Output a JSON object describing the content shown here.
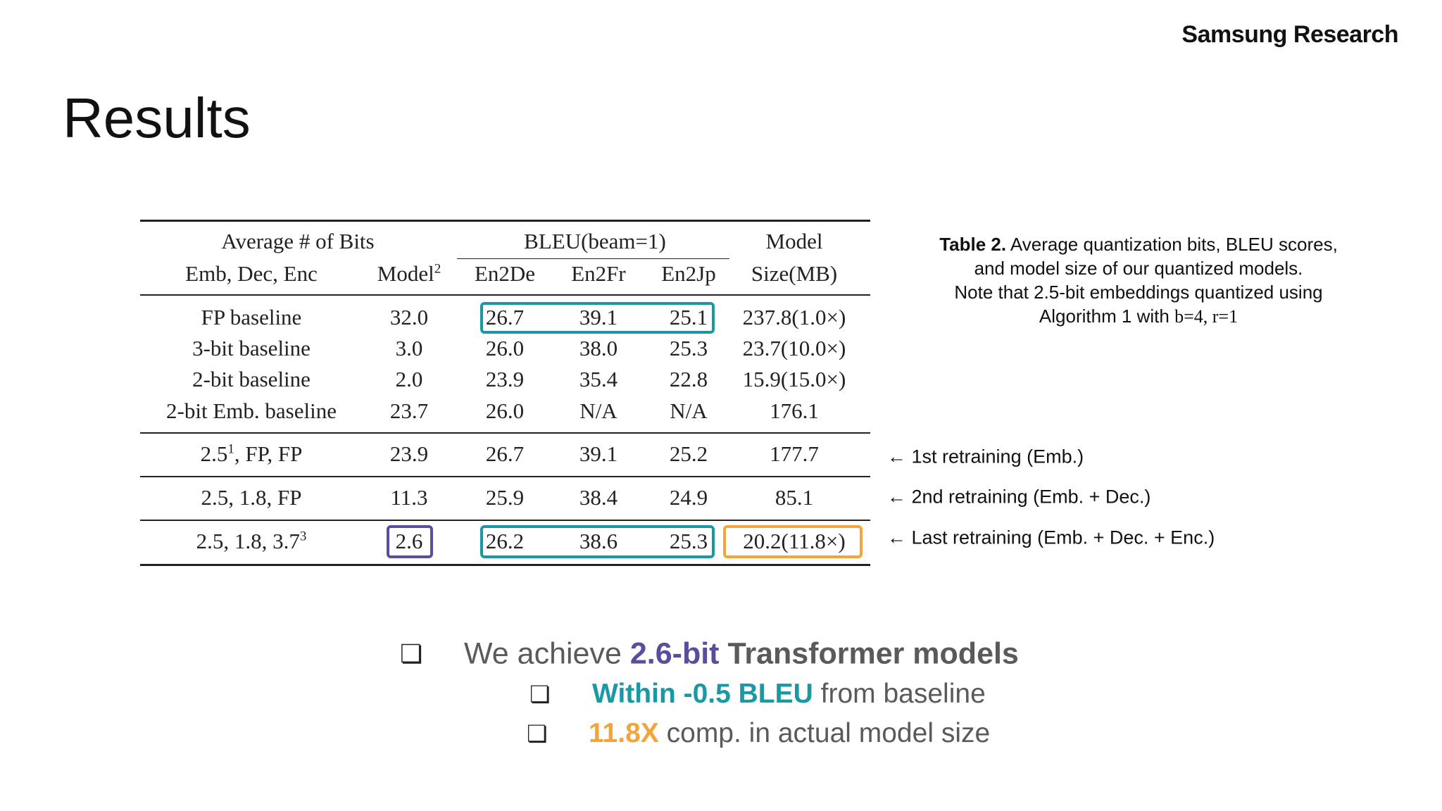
{
  "brand": "Samsung Research",
  "title": "Results",
  "table": {
    "header_top": [
      "Average # of Bits",
      "BLEU(beam=1)",
      "Model"
    ],
    "header": [
      "Emb, Dec, Enc",
      {
        "text": "Model",
        "sup": "2"
      },
      "En2De",
      "En2Fr",
      "En2Jp",
      "Size(MB)"
    ],
    "rows": [
      [
        "FP baseline",
        "32.0",
        "26.7",
        "39.1",
        "25.1",
        "237.8(1.0×)"
      ],
      [
        "3-bit baseline",
        "3.0",
        "26.0",
        "38.0",
        "25.3",
        "23.7(10.0×)"
      ],
      [
        "2-bit baseline",
        "2.0",
        "23.9",
        "35.4",
        "22.8",
        "15.9(15.0×)"
      ],
      [
        "2-bit Emb. baseline",
        "23.7",
        "26.0",
        "N/A",
        "N/A",
        "176.1"
      ],
      [
        {
          "text": "2.5",
          "sup": "1",
          "tail": ", FP, FP"
        },
        "23.9",
        "26.7",
        "39.1",
        "25.2",
        "177.7"
      ],
      [
        "2.5, 1.8, FP",
        "11.3",
        "25.9",
        "38.4",
        "24.9",
        "85.1"
      ],
      [
        {
          "text": "2.5, 1.8, 3.7",
          "sup": "3"
        },
        "2.6",
        "26.2",
        "38.6",
        "25.3",
        "20.2(11.8×)"
      ]
    ]
  },
  "caption": {
    "label": "Table 2.",
    "lines": [
      "Average quantization bits, BLEU scores,",
      "and model size of our quantized models.",
      "Note that 2.5-bit embeddings quantized using",
      "Algorithm 1 with"
    ],
    "math": "b=4, r=1"
  },
  "annotations": [
    "← 1st retraining (Emb.)",
    "← 2nd retraining (Emb. + Dec.)",
    "← Last retraining (Emb. + Dec. + Enc.)"
  ],
  "bullets": [
    [
      "We achieve",
      "2.6-bit",
      "Transformer models"
    ],
    [
      "Within -0.5 BLEU",
      "from baseline"
    ],
    [
      "11.8X",
      "comp. in actual model size"
    ]
  ]
}
